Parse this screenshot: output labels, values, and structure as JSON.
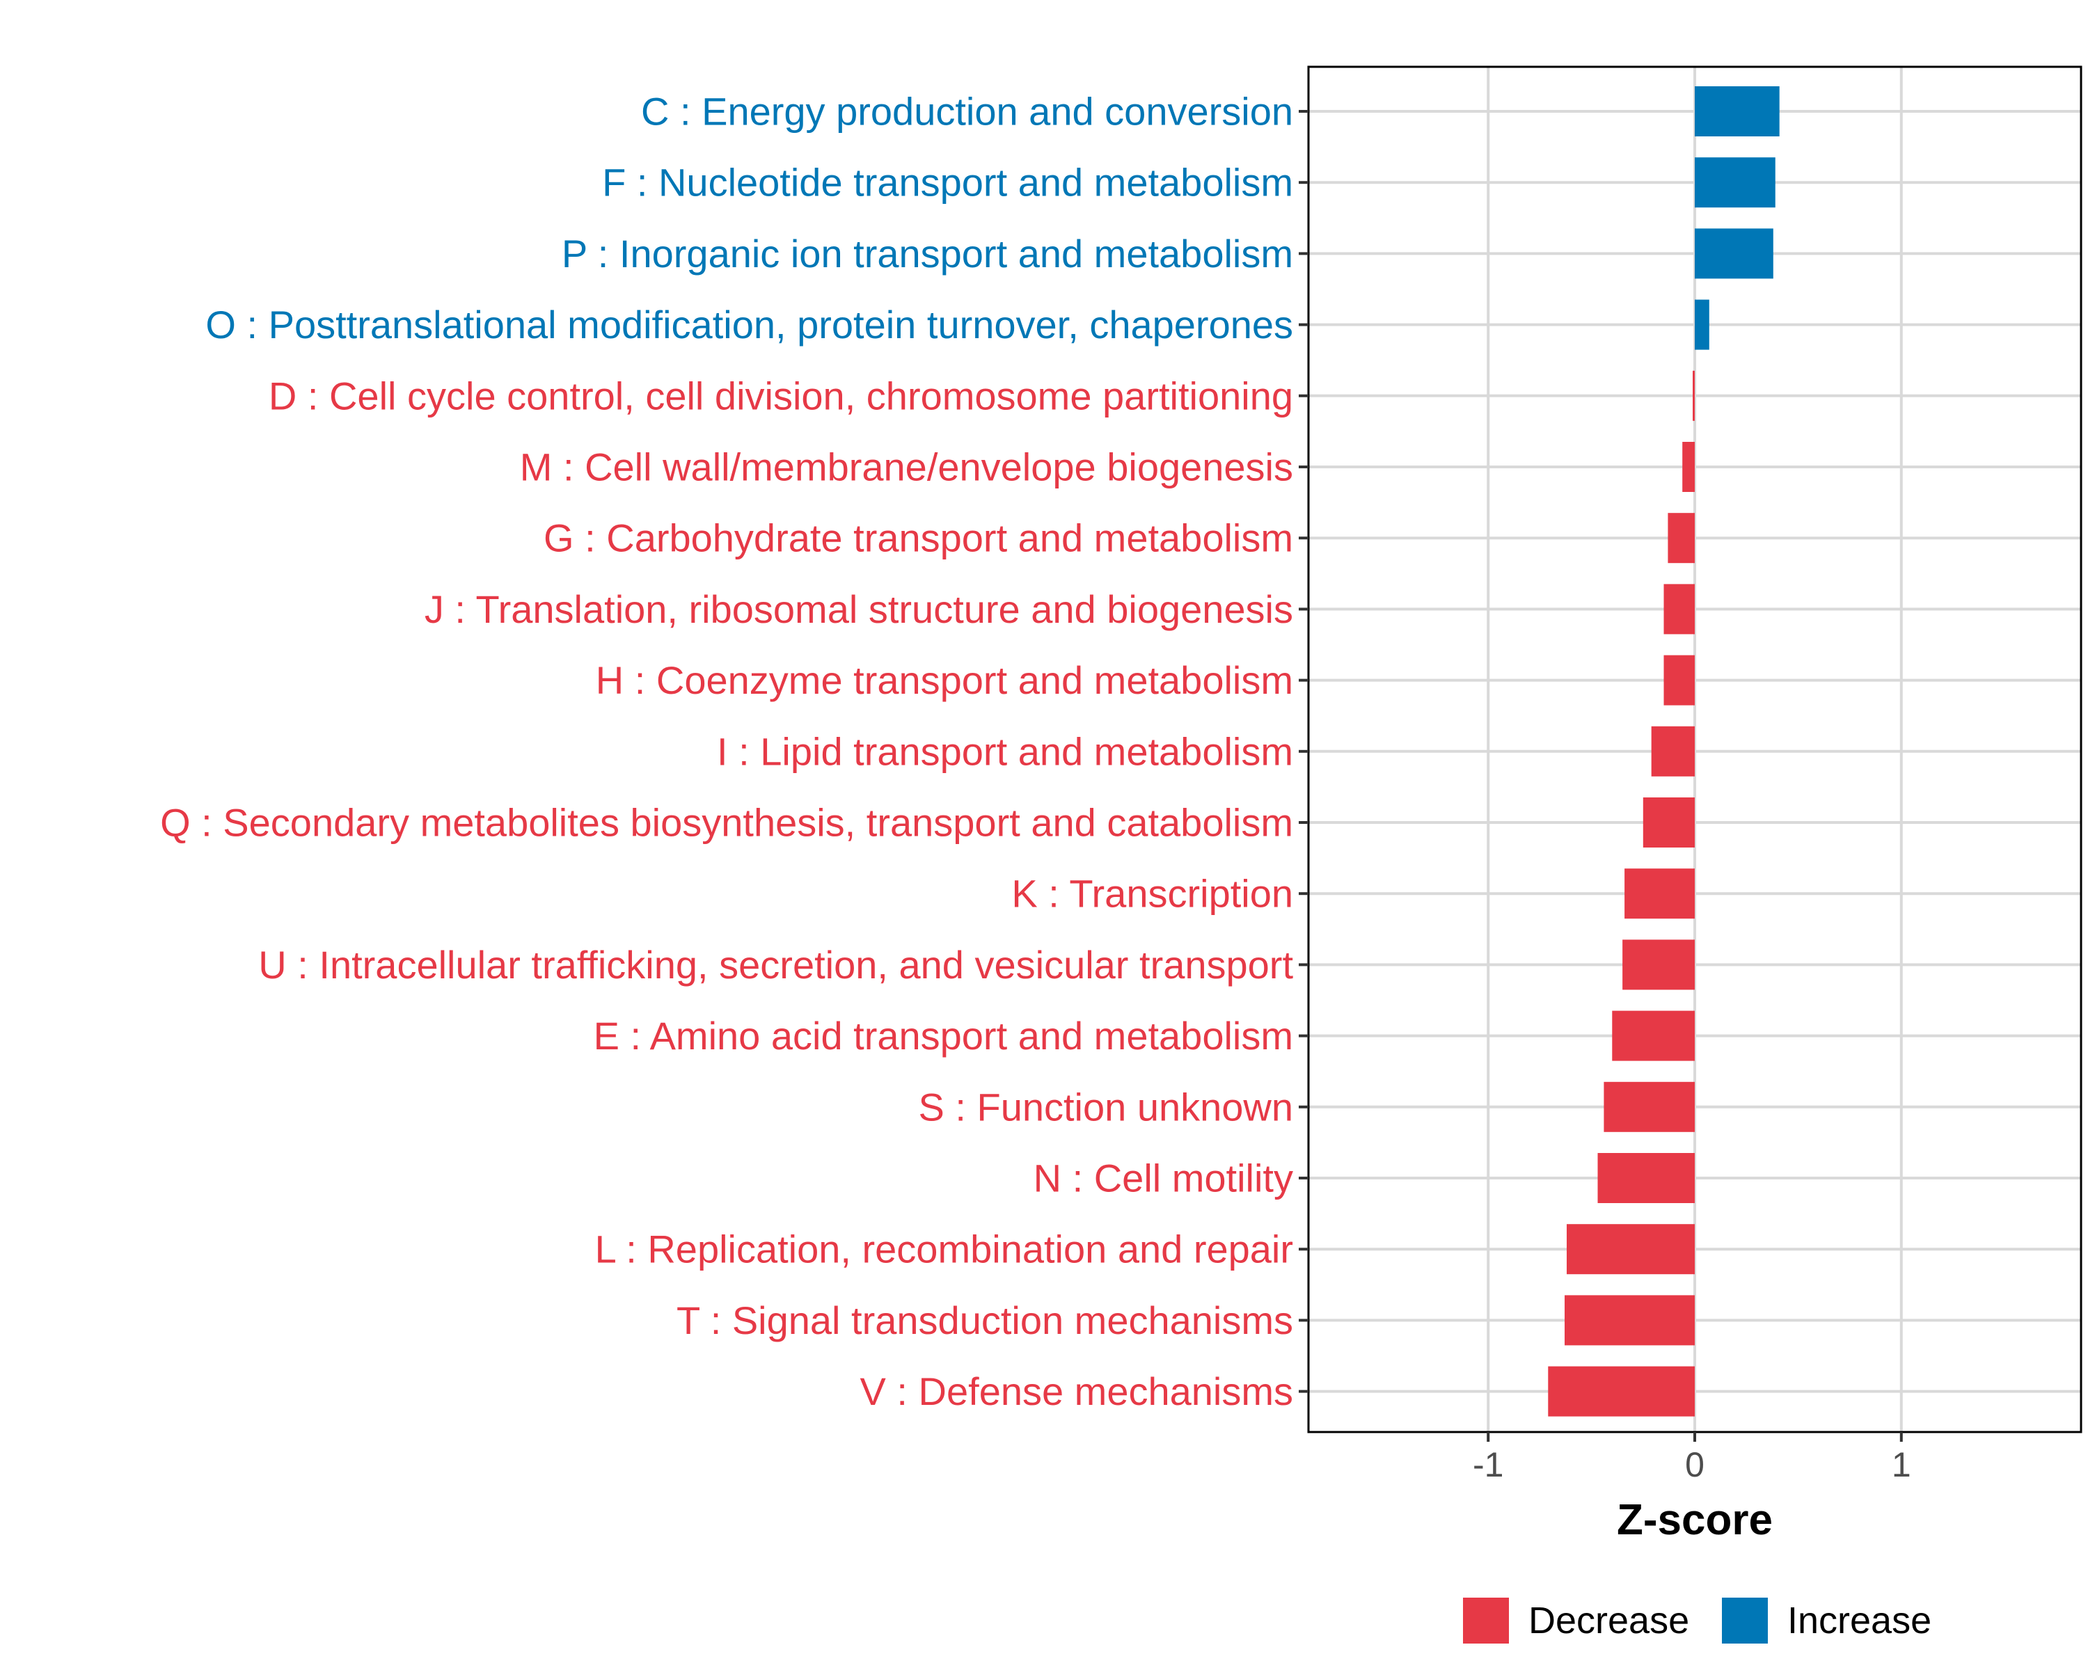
{
  "chart_data": {
    "type": "bar",
    "orientation": "horizontal",
    "xlabel": "Z-score",
    "ylabel": "",
    "xlim": [
      -1.87,
      1.87
    ],
    "xticks": [
      -1,
      0,
      1
    ],
    "xtick_labels": [
      "-1",
      "0",
      "1"
    ],
    "grid": true,
    "legend_position": "bottom",
    "legend": [
      {
        "name": "Decrease",
        "color": "#E63946"
      },
      {
        "name": "Increase",
        "color": "#0077B6"
      }
    ],
    "categories": [
      "C : Energy production and conversion",
      "F : Nucleotide transport and metabolism",
      "P : Inorganic ion transport and metabolism",
      "O : Posttranslational modification, protein turnover, chaperones",
      "D : Cell cycle control, cell division, chromosome partitioning",
      "M : Cell wall/membrane/envelope biogenesis",
      "G : Carbohydrate transport and metabolism",
      "J : Translation, ribosomal structure and biogenesis",
      "H : Coenzyme transport and metabolism",
      "I : Lipid transport and metabolism",
      "Q : Secondary metabolites biosynthesis, transport and catabolism",
      "K : Transcription",
      "U : Intracellular trafficking, secretion, and vesicular transport",
      "E : Amino acid transport and metabolism",
      "S : Function unknown",
      "N : Cell motility",
      "L : Replication, recombination and repair",
      "T : Signal transduction mechanisms",
      "V : Defense mechanisms"
    ],
    "values": [
      0.41,
      0.39,
      0.38,
      0.07,
      -0.01,
      -0.06,
      -0.13,
      -0.15,
      -0.15,
      -0.21,
      -0.25,
      -0.34,
      -0.35,
      -0.4,
      -0.44,
      -0.47,
      -0.62,
      -0.63,
      -0.71
    ],
    "groups": [
      "Increase",
      "Increase",
      "Increase",
      "Increase",
      "Decrease",
      "Decrease",
      "Decrease",
      "Decrease",
      "Decrease",
      "Decrease",
      "Decrease",
      "Decrease",
      "Decrease",
      "Decrease",
      "Decrease",
      "Decrease",
      "Decrease",
      "Decrease",
      "Decrease"
    ]
  }
}
